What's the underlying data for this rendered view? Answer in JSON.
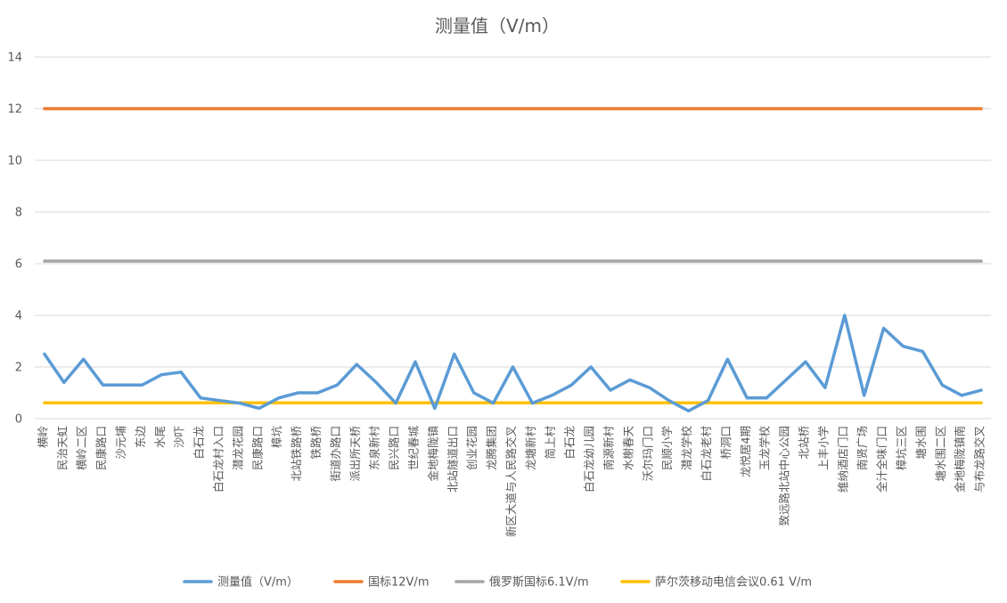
{
  "chart_data": {
    "type": "line",
    "title": "测量值（V/m）",
    "xlabel": "",
    "ylabel": "",
    "ylim": [
      0,
      14
    ],
    "yticks": [
      0,
      2,
      4,
      6,
      8,
      10,
      12,
      14
    ],
    "grid": true,
    "legend_position": "bottom",
    "categories": [
      "横岭",
      "民治天虹",
      "横岭二区",
      "民康路口",
      "沙元埔",
      "东边",
      "水尾",
      "沙吓",
      "白石龙",
      "白石龙村入口",
      "潜龙花园",
      "民康路口",
      "樟坑",
      "北站铁路桥",
      "铁路桥",
      "街道办路口",
      "派出所天桥",
      "东泉新村",
      "民兴路口",
      "世纪春城",
      "金地梅陇镇",
      "北站隧道出口",
      "创业花园",
      "龙腾集团",
      "新区大道与人民路交叉",
      "龙塘新村",
      "简上村",
      "白石龙",
      "白石龙幼儿园",
      "南源新村",
      "水榭春天",
      "沃尔玛门口",
      "民顺小学",
      "潜龙学校",
      "白石龙老村",
      "桥洞口",
      "龙悦居4期",
      "玉龙学校",
      "致远路北站中心公园",
      "北站桥",
      "上丰小学",
      "维纳酒店门口",
      "南贤广场",
      "全汁全味门口",
      "樟坑三区",
      "塘水围",
      "塘水围二区",
      "金地梅陇镇南",
      "与布龙路交叉"
    ],
    "series": [
      {
        "name": "测量值（V/m）",
        "color": "#5b9bd5",
        "values": [
          2.5,
          1.4,
          2.3,
          1.3,
          1.3,
          1.3,
          1.7,
          1.8,
          0.8,
          0.7,
          0.6,
          0.4,
          0.8,
          1.0,
          1.0,
          1.3,
          2.1,
          1.4,
          0.6,
          2.2,
          0.4,
          2.5,
          1.0,
          0.6,
          2.0,
          0.6,
          0.9,
          1.3,
          2.0,
          1.1,
          1.5,
          1.2,
          0.7,
          0.3,
          0.7,
          2.3,
          0.8,
          0.8,
          1.5,
          2.2,
          1.2,
          4.0,
          0.9,
          3.5,
          2.8,
          2.6,
          1.3,
          0.9,
          1.1
        ]
      },
      {
        "name": "国标12V/m",
        "color": "#ed7d31",
        "values": [
          12,
          12,
          12,
          12,
          12,
          12,
          12,
          12,
          12,
          12,
          12,
          12,
          12,
          12,
          12,
          12,
          12,
          12,
          12,
          12,
          12,
          12,
          12,
          12,
          12,
          12,
          12,
          12,
          12,
          12,
          12,
          12,
          12,
          12,
          12,
          12,
          12,
          12,
          12,
          12,
          12,
          12,
          12,
          12,
          12,
          12,
          12,
          12,
          12
        ]
      },
      {
        "name": "俄罗斯国标6.1V/m",
        "color": "#a5a5a5",
        "values": [
          6.1,
          6.1,
          6.1,
          6.1,
          6.1,
          6.1,
          6.1,
          6.1,
          6.1,
          6.1,
          6.1,
          6.1,
          6.1,
          6.1,
          6.1,
          6.1,
          6.1,
          6.1,
          6.1,
          6.1,
          6.1,
          6.1,
          6.1,
          6.1,
          6.1,
          6.1,
          6.1,
          6.1,
          6.1,
          6.1,
          6.1,
          6.1,
          6.1,
          6.1,
          6.1,
          6.1,
          6.1,
          6.1,
          6.1,
          6.1,
          6.1,
          6.1,
          6.1,
          6.1,
          6.1,
          6.1,
          6.1,
          6.1,
          6.1
        ]
      },
      {
        "name": "萨尔茨移动电信会议0.61 V/m",
        "color": "#ffc000",
        "values": [
          0.61,
          0.61,
          0.61,
          0.61,
          0.61,
          0.61,
          0.61,
          0.61,
          0.61,
          0.61,
          0.61,
          0.61,
          0.61,
          0.61,
          0.61,
          0.61,
          0.61,
          0.61,
          0.61,
          0.61,
          0.61,
          0.61,
          0.61,
          0.61,
          0.61,
          0.61,
          0.61,
          0.61,
          0.61,
          0.61,
          0.61,
          0.61,
          0.61,
          0.61,
          0.61,
          0.61,
          0.61,
          0.61,
          0.61,
          0.61,
          0.61,
          0.61,
          0.61,
          0.61,
          0.61,
          0.61,
          0.61,
          0.61,
          0.61
        ]
      }
    ]
  }
}
